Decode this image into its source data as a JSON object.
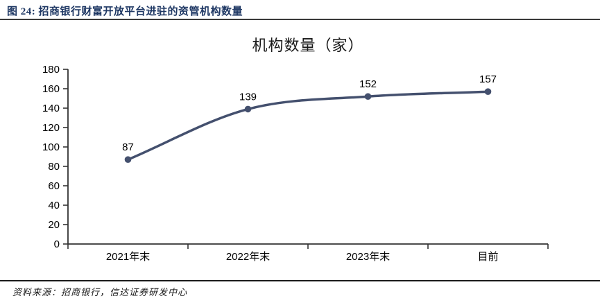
{
  "header": {
    "figure_label": "图 24: 招商银行财富开放平台进驻的资管机构数量"
  },
  "footer": {
    "source_note": "资料来源：招商银行，信达证券研发中心"
  },
  "chart_data": {
    "type": "line",
    "title": "机构数量（家）",
    "categories": [
      "2021年末",
      "2022年末",
      "2023年末",
      "目前"
    ],
    "values": [
      87,
      139,
      152,
      157
    ],
    "xlabel": "",
    "ylabel": "",
    "ylim": [
      0,
      180
    ],
    "ytick_step": 20,
    "grid": false,
    "legend": "none",
    "smooth": true,
    "marker": "circle",
    "colors": {
      "series": "#44506E",
      "axis": "#333333",
      "text": "#000000",
      "caption": "#1F3864"
    }
  }
}
